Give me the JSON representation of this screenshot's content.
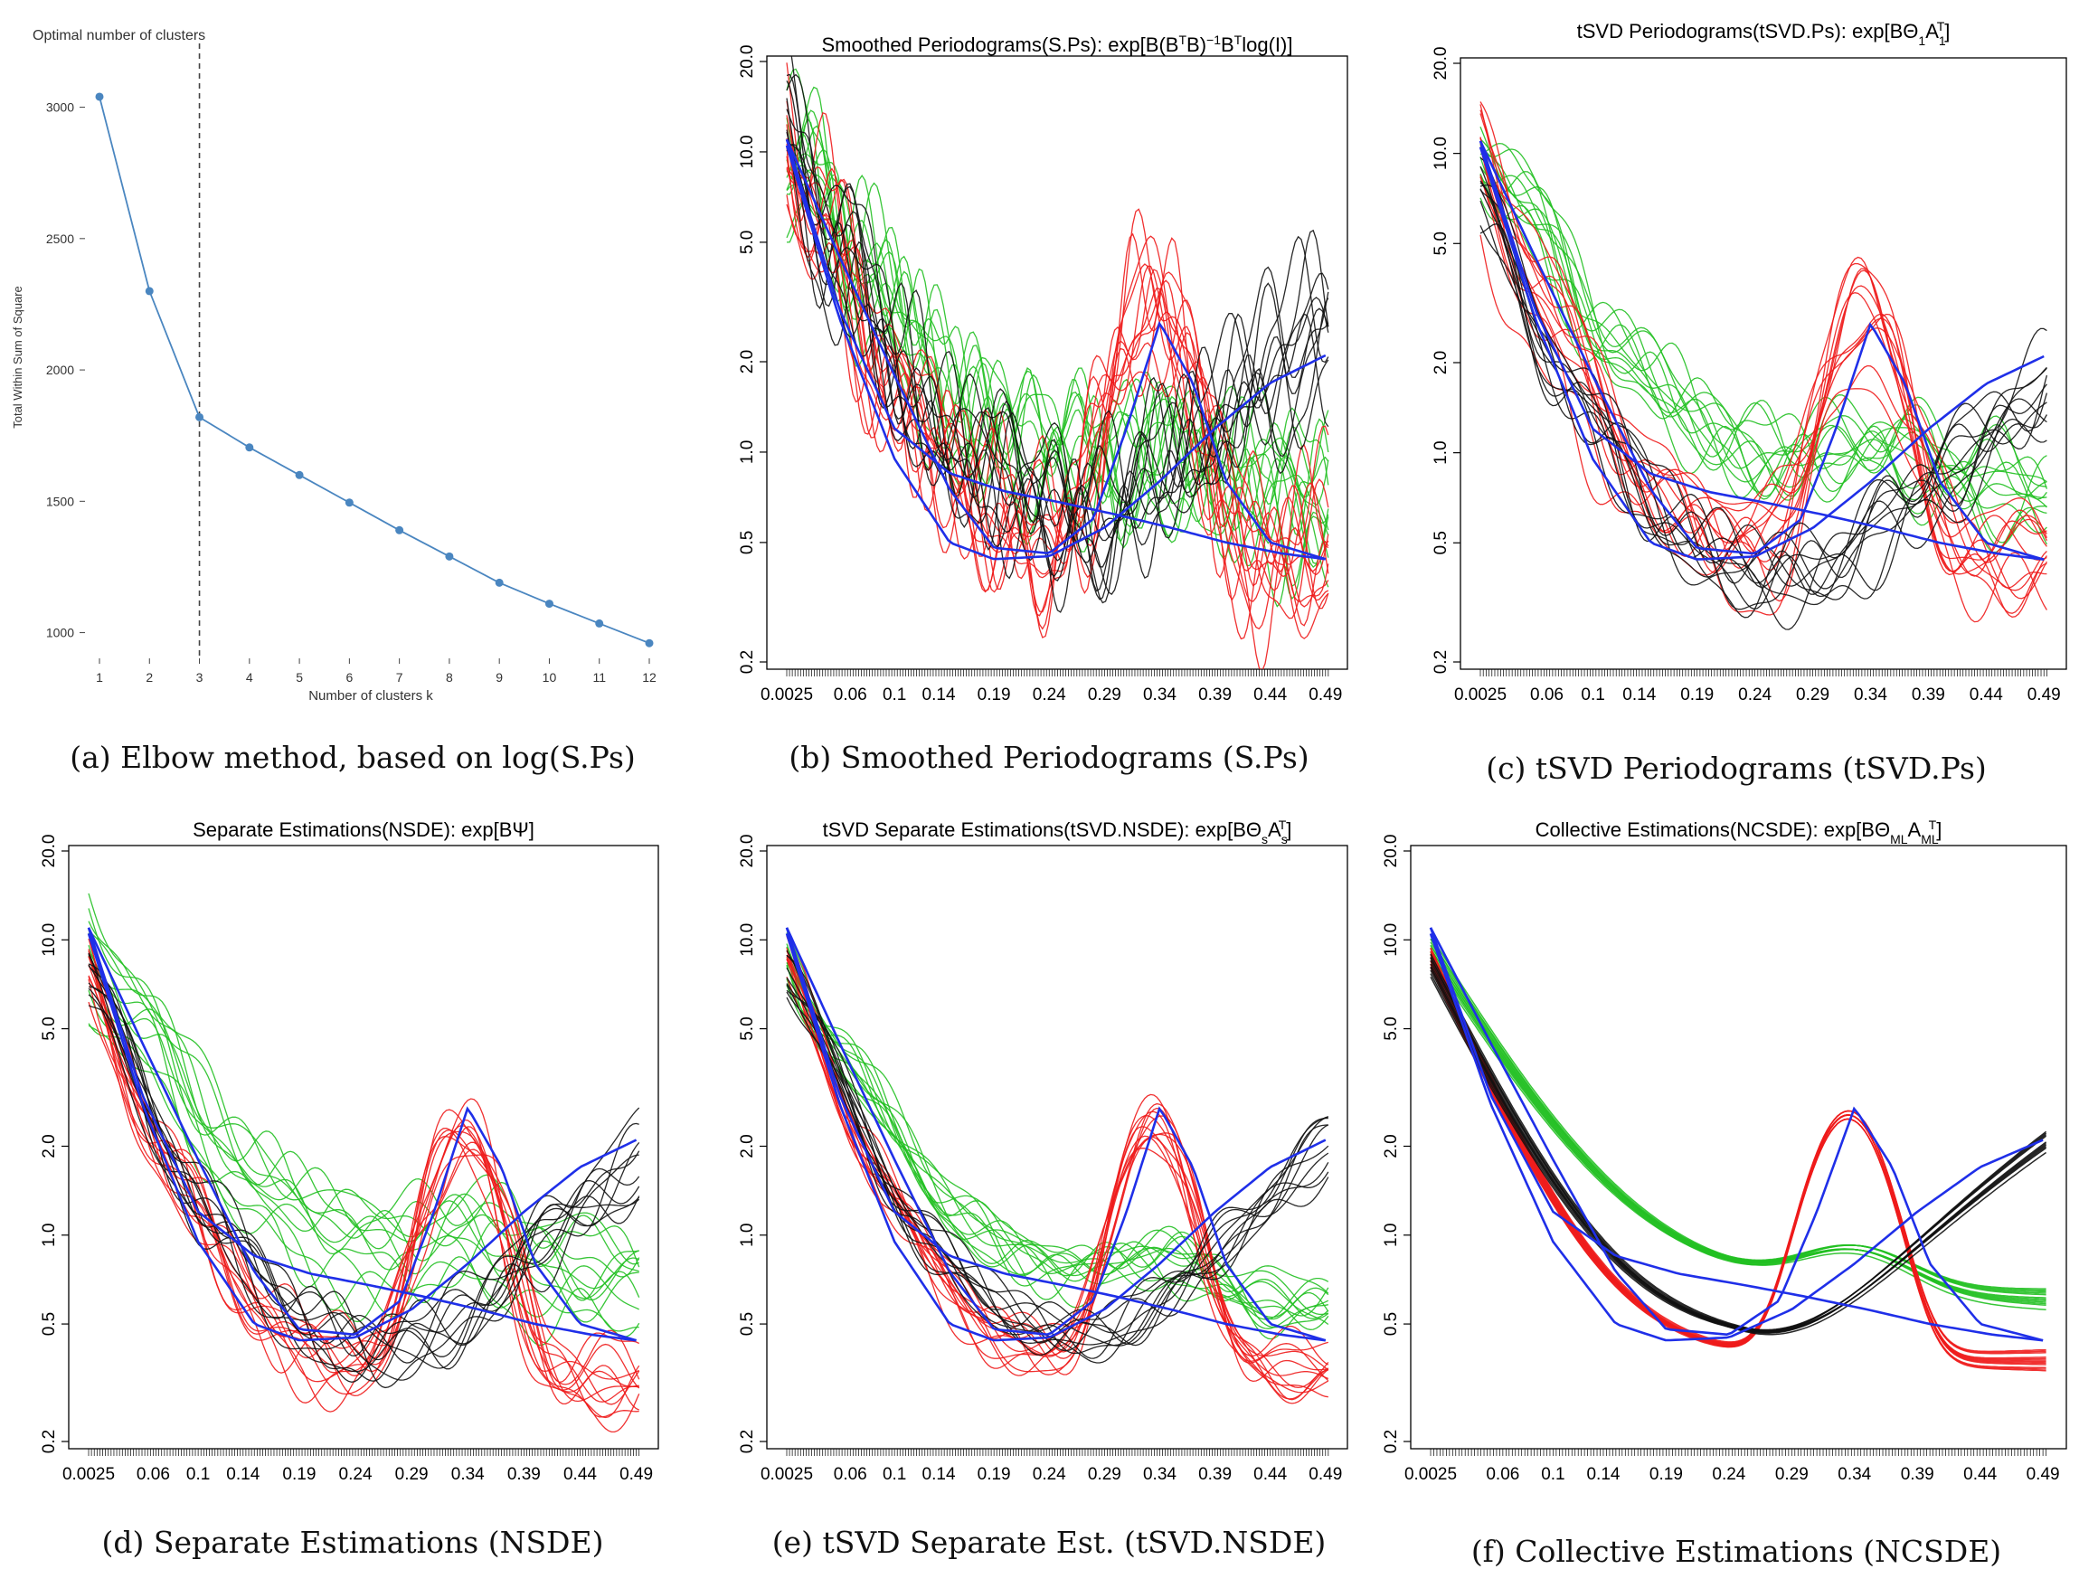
{
  "panels": [
    {
      "id": "a",
      "caption": "(a) Elbow method, based on log(S.Ps)",
      "chart_data": {
        "type": "line",
        "title": "Optimal number of clusters",
        "xlabel": "Number of clusters k",
        "ylabel": "Total Within Sum of Square",
        "x": [
          1,
          2,
          3,
          4,
          5,
          6,
          7,
          8,
          9,
          10,
          11,
          12
        ],
        "values": [
          3040,
          2300,
          1820,
          1705,
          1600,
          1495,
          1390,
          1290,
          1190,
          1110,
          1035,
          960
        ],
        "yticks": [
          "1000",
          "1500",
          "2000",
          "2500",
          "3000"
        ],
        "xticks": [
          "1",
          "2",
          "3",
          "4",
          "5",
          "6",
          "7",
          "8",
          "9",
          "10",
          "11",
          "12"
        ],
        "optimal_k": 3,
        "ylim": [
          940,
          3150
        ],
        "color": "#4a86c0"
      }
    },
    {
      "id": "b",
      "caption": "(b) Smoothed Periodograms (S.Ps)",
      "title": "Smoothed Periodograms(S.Ps): exp[B(B",
      "title_sup1": "T",
      "title_mid": "B)",
      "title_sup2": "−1",
      "title_mid2": "B",
      "title_sup3": "T",
      "title_end": "log(I)]"
    },
    {
      "id": "c",
      "caption": "(c) tSVD Periodograms (tSVD.Ps)",
      "title": "tSVD Periodograms(tSVD.Ps): exp[BΘ",
      "title_sub1": "1",
      "title_mid": "A",
      "title_sub2": "1",
      "title_sup2": "T",
      "title_end": "]"
    },
    {
      "id": "d",
      "caption": "(d) Separate Estimations (NSDE)",
      "title": "Separate Estimations(NSDE): exp[BΨ]"
    },
    {
      "id": "e",
      "caption": "(e) tSVD Separate Est. (tSVD.NSDE)",
      "title": "tSVD Separate Estimations(tSVD.NSDE): exp[BΘ",
      "title_sub1": "s",
      "title_mid": "A",
      "title_sub2": "s",
      "title_sup2": "T",
      "title_end": "]"
    },
    {
      "id": "f",
      "caption": "(f) Collective Estimations (NCSDE)",
      "title": "Collective Estimations(NCSDE): exp[BΘ",
      "title_sub1": "ML",
      "title_mid": "A",
      "title_sub2": "ML",
      "title_sup2": "T",
      "title_end": "]"
    }
  ],
  "spectral_axes": {
    "type": "line",
    "x_tick_labels": [
      "0.0025",
      "0.06",
      "0.1",
      "0.14",
      "0.19",
      "0.24",
      "0.29",
      "0.34",
      "0.39",
      "0.44",
      "0.49"
    ],
    "x_tick_values": [
      0.0025,
      0.06,
      0.1,
      0.14,
      0.19,
      0.24,
      0.29,
      0.34,
      0.39,
      0.44,
      0.49
    ],
    "y_tick_labels": [
      "0.2",
      "0.5",
      "1.0",
      "2.0",
      "5.0",
      "10.0",
      "20.0"
    ],
    "y_tick_values": [
      0.2,
      0.5,
      1.0,
      2.0,
      5.0,
      10.0,
      20.0
    ],
    "y_scale": "log",
    "xlim": [
      0.0025,
      0.5
    ],
    "ylim": [
      0.2,
      20
    ],
    "group_colors": {
      "green": "#22c022",
      "red": "#ee1b1b",
      "black": "#111111",
      "blue": "#1f2fe8"
    },
    "blue_reference_curves": [
      {
        "x": [
          0.0025,
          0.05,
          0.1,
          0.15,
          0.19,
          0.24,
          0.28,
          0.31,
          0.34,
          0.37,
          0.4,
          0.44,
          0.49
        ],
        "y": [
          11.0,
          4.5,
          1.8,
          0.75,
          0.48,
          0.46,
          0.6,
          1.2,
          2.7,
          1.7,
          0.8,
          0.5,
          0.44
        ]
      },
      {
        "x": [
          0.0025,
          0.05,
          0.1,
          0.15,
          0.2,
          0.25,
          0.3,
          0.35,
          0.4,
          0.45,
          0.49
        ],
        "y": [
          11.0,
          3.0,
          1.2,
          0.85,
          0.74,
          0.68,
          0.62,
          0.56,
          0.5,
          0.46,
          0.44
        ]
      },
      {
        "x": [
          0.0025,
          0.05,
          0.1,
          0.15,
          0.19,
          0.24,
          0.29,
          0.34,
          0.39,
          0.44,
          0.49
        ],
        "y": [
          10.5,
          2.8,
          0.95,
          0.5,
          0.44,
          0.45,
          0.56,
          0.8,
          1.2,
          1.7,
          2.1
        ]
      }
    ]
  }
}
